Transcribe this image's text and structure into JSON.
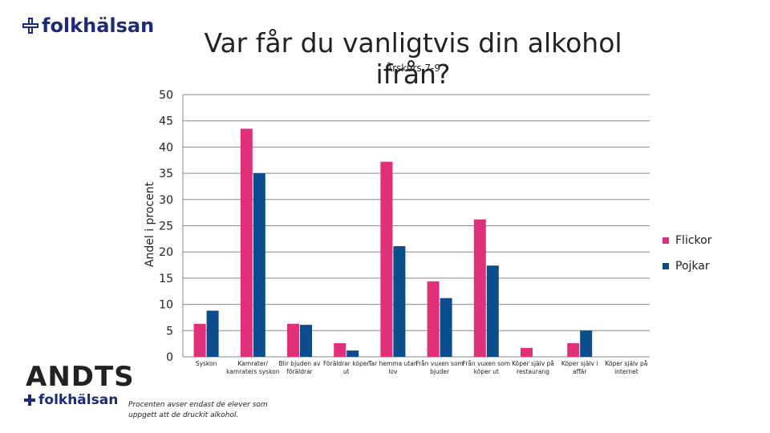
{
  "branding": {
    "top_logo": "folkhälsan",
    "andts_logo": "ANDTS",
    "bottom_logo": "folkhälsan"
  },
  "note": "Procenten avser endast de elever som uppgett att de druckit alkohol.",
  "chart_data": {
    "type": "bar",
    "title": "Var får du vanligtvis din alkohol ifrån?",
    "subtitle": "Årskurs 7-9",
    "ylabel": "Andel i procent",
    "xlabel": "",
    "ylim": [
      0,
      50
    ],
    "yticks": [
      0,
      5,
      10,
      15,
      20,
      25,
      30,
      35,
      40,
      45,
      50
    ],
    "grid": true,
    "legend_position": "right",
    "categories": [
      "Syskon",
      "Kamrater/ kamraters syskon",
      "Blir bjuden av föräldrar",
      "Föräldrar köper ut",
      "Tar hemma utan lov",
      "Från vuxen som bjuder",
      "Från vuxen som köper ut",
      "Köper själv på restaurang",
      "Köper själv i affär",
      "Köper själv på internet"
    ],
    "series": [
      {
        "name": "Flickor",
        "color": "#e0307a",
        "values": [
          6.3,
          43.5,
          6.3,
          2.6,
          37.2,
          14.4,
          26.2,
          1.7,
          2.6,
          0
        ]
      },
      {
        "name": "Pojkar",
        "color": "#0b4d8c",
        "values": [
          8.8,
          35.0,
          6.1,
          1.2,
          21.1,
          11.2,
          17.4,
          0,
          5.0,
          0
        ]
      }
    ]
  }
}
